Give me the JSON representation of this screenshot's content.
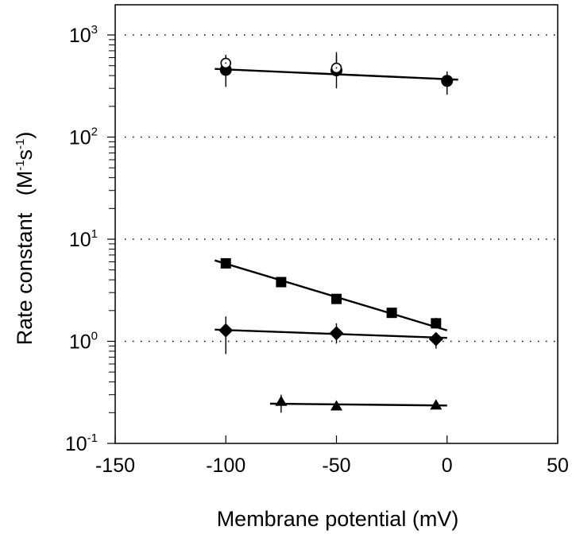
{
  "chart_data": {
    "type": "scatter",
    "title": "",
    "xlabel": "Membrane potential  (mV)",
    "ylabel": "Rate constant",
    "ylabel_units": {
      "open": "(M",
      "sup1": "-1",
      "mid": "s",
      "sup2": "-1",
      "close": ")"
    },
    "xlim": [
      -150,
      50
    ],
    "ylim": [
      0.1,
      1000
    ],
    "yscale": "log",
    "grid": "dotted horizontal at decades",
    "x_ticks": [
      {
        "value": -150,
        "label": "-150"
      },
      {
        "value": -100,
        "label": "-100"
      },
      {
        "value": -50,
        "label": "-50"
      },
      {
        "value": 0,
        "label": "0"
      },
      {
        "value": 50,
        "label": "50"
      }
    ],
    "y_ticks": [
      {
        "value": 0.1,
        "base": "10",
        "exp": "-1"
      },
      {
        "value": 1,
        "base": "10",
        "exp": "0"
      },
      {
        "value": 10,
        "base": "10",
        "exp": "1"
      },
      {
        "value": 100,
        "base": "10",
        "exp": "2"
      },
      {
        "value": 1000,
        "base": "10",
        "exp": "3"
      }
    ],
    "series": [
      {
        "name": "filled-circles",
        "marker": "circle-filled",
        "x": [
          -100,
          -50,
          0
        ],
        "y": [
          455,
          450,
          355
        ],
        "err_low": [
          310,
          300,
          260
        ],
        "err_high": [
          600,
          640,
          440
        ],
        "fit": {
          "x": [
            -105,
            5
          ],
          "y": [
            465,
            365
          ]
        }
      },
      {
        "name": "open-circles",
        "marker": "circle-open",
        "x": [
          -100,
          -50
        ],
        "y": [
          530,
          475
        ],
        "err_low": [
          470,
          420
        ],
        "err_high": [
          640,
          680
        ],
        "fit": null
      },
      {
        "name": "squares",
        "marker": "square-filled",
        "x": [
          -100,
          -75,
          -50,
          -25,
          -5
        ],
        "y": [
          5.8,
          3.8,
          2.6,
          1.9,
          1.5
        ],
        "err_low": [
          5.5,
          3.5,
          2.45,
          1.75,
          1.35
        ],
        "err_high": [
          6.1,
          4.1,
          2.75,
          2.0,
          1.7
        ],
        "fit": {
          "x": [
            -105,
            0
          ],
          "y": [
            6.2,
            1.28
          ]
        }
      },
      {
        "name": "diamonds",
        "marker": "diamond-filled",
        "x": [
          -100,
          -50,
          -5
        ],
        "y": [
          1.28,
          1.2,
          1.05
        ],
        "err_low": [
          0.75,
          0.95,
          0.85
        ],
        "err_high": [
          1.75,
          1.5,
          1.2
        ],
        "fit": {
          "x": [
            -105,
            0
          ],
          "y": [
            1.3,
            1.08
          ]
        }
      },
      {
        "name": "triangles",
        "marker": "triangle-filled",
        "x": [
          -75,
          -50,
          -5
        ],
        "y": [
          0.255,
          0.23,
          0.235
        ],
        "err_low": [
          0.2,
          0.23,
          0.235
        ],
        "err_high": [
          0.3,
          0.23,
          0.235
        ],
        "fit": {
          "x": [
            -80,
            0
          ],
          "y": [
            0.245,
            0.235
          ]
        }
      }
    ]
  }
}
